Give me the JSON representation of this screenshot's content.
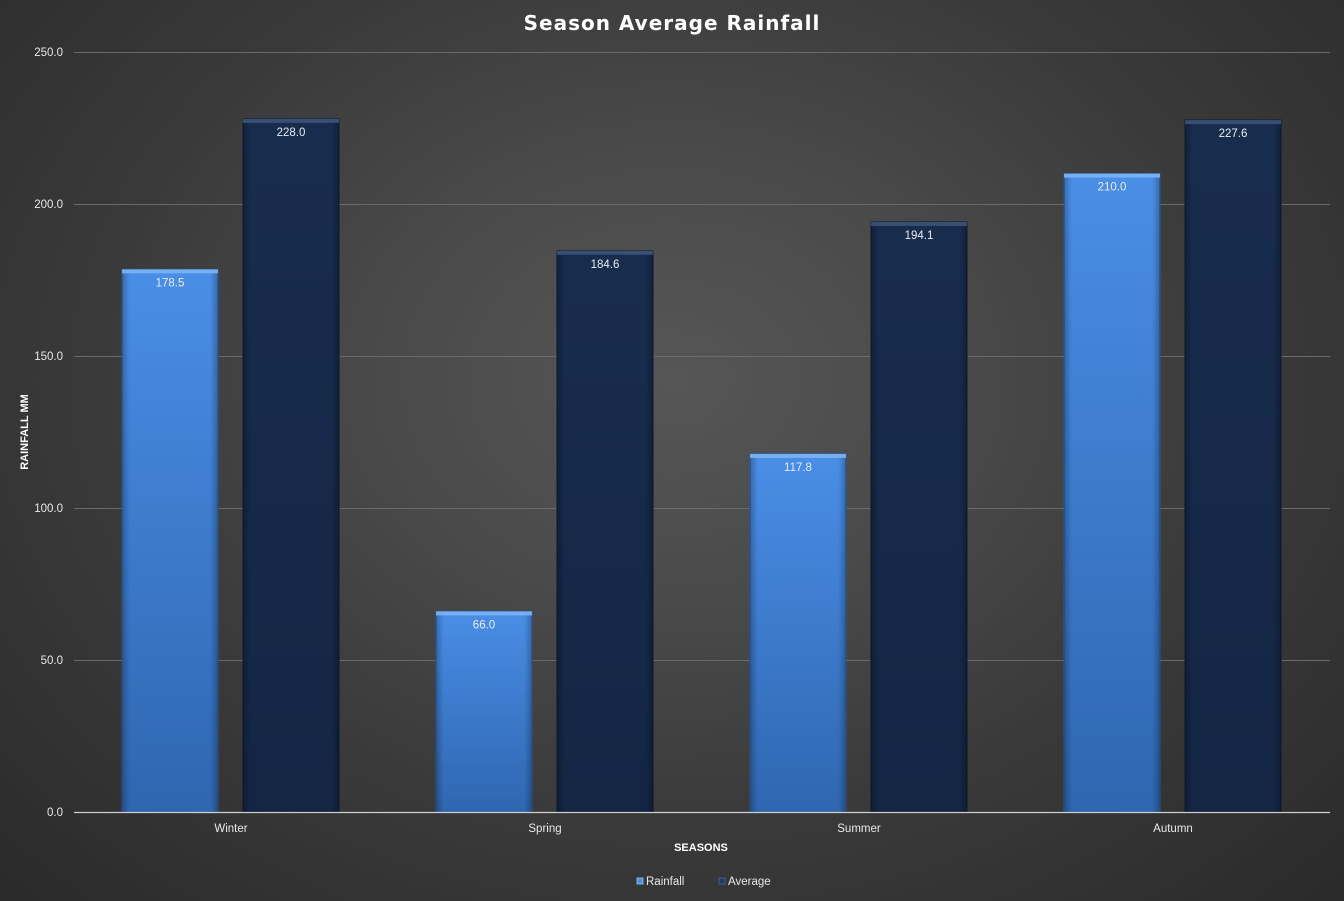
{
  "chart_data": {
    "type": "bar",
    "title": "Season Average Rainfall",
    "xlabel": "SEASONS",
    "ylabel": "RAINFALL MM",
    "categories": [
      "Winter",
      "Spring",
      "Summer",
      "Autumn"
    ],
    "series": [
      {
        "name": "Rainfall",
        "values": [
          178.5,
          66.0,
          117.8,
          210.0
        ],
        "color": "#3f80d4",
        "label_color": "#e8ecf2"
      },
      {
        "name": "Average",
        "values": [
          228.0,
          184.6,
          194.1,
          227.6
        ],
        "color": "#172a4a",
        "label_color": "#e8ecf2"
      }
    ],
    "ylim": [
      0,
      250
    ],
    "yticks": [
      0,
      50,
      100,
      150,
      200,
      250
    ],
    "ytick_labels": [
      "0.0",
      "50.0",
      "100.0",
      "150.0",
      "200.0",
      "250.0"
    ],
    "data_labels": true,
    "data_label_decimals": 1,
    "grid": true,
    "legend_position": "bottom",
    "colors": {
      "background": "#3a3a3a",
      "gridline": "#6a6a6a",
      "axis": "#cfcfcf",
      "text": "#ffffff"
    }
  }
}
